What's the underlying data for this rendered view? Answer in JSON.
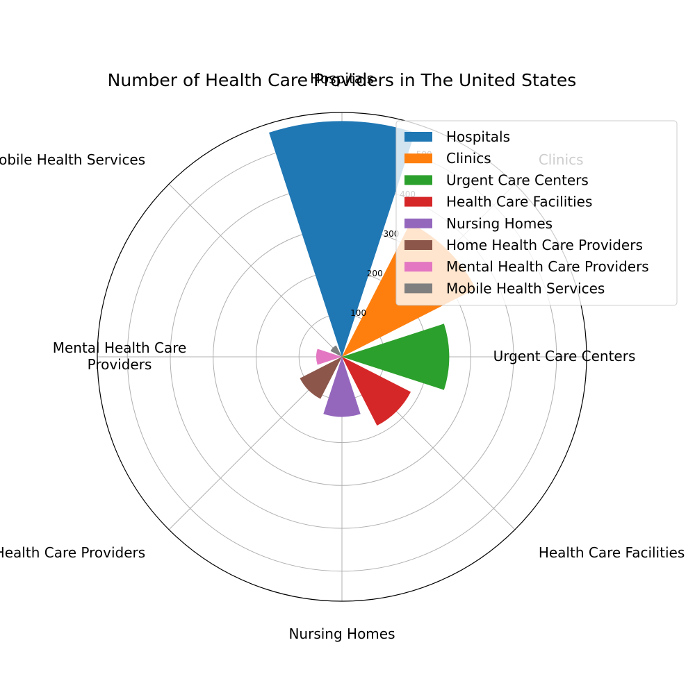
{
  "chart_data": {
    "type": "bar",
    "subtype": "polar",
    "title": "Number of Health Care Providers in The United States",
    "categories": [
      "Hospitals",
      "Clinics",
      "Urgent Care Centers",
      "Health Care Facilities",
      "Nursing Homes",
      "Home Health Care Providers",
      "Mental Health Care Providers",
      "Mobile Health Services"
    ],
    "category_labels": [
      [
        "Hospitals"
      ],
      [
        "Clinics"
      ],
      [
        "Urgent Care Centers"
      ],
      [
        "Health Care Facilities"
      ],
      [
        "Nursing Homes"
      ],
      [
        "Home Health Care Providers"
      ],
      [
        "Mental Health Care",
        "Providers"
      ],
      [
        "Mobile Health Services"
      ]
    ],
    "values": [
      550,
      350,
      250,
      180,
      140,
      110,
      60,
      30
    ],
    "colors": [
      "#1f77b4",
      "#ff7f0e",
      "#2ca02c",
      "#d62728",
      "#9467bd",
      "#8c564b",
      "#e377c2",
      "#7f7f7f"
    ],
    "rticks": [
      100,
      200,
      300,
      400,
      500
    ],
    "rlim": [
      0,
      570
    ],
    "grid": true,
    "legend_position": "top-right"
  }
}
